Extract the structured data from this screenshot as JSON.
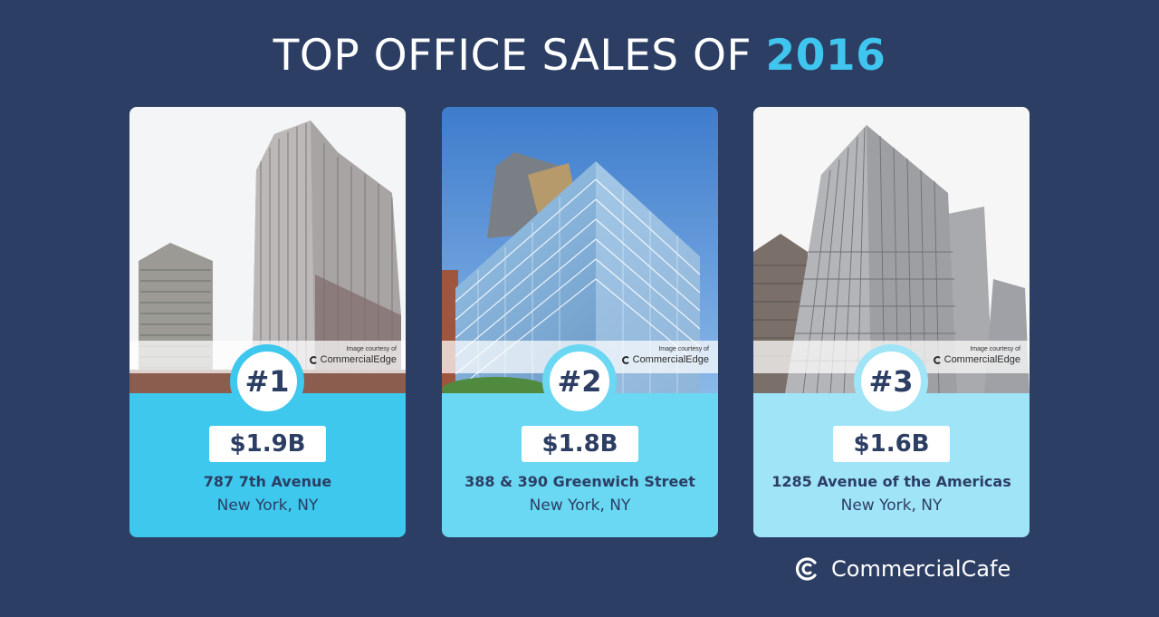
{
  "header": {
    "title_prefix": "TOP OFFICE SALES OF",
    "title_year": "2016"
  },
  "cards": [
    {
      "rank": "#1",
      "price": "$1.9B",
      "address": "787 7th Avenue",
      "city": "New York, NY",
      "credit_label": "Image courtesy of",
      "credit_brand": "CommercialEdge"
    },
    {
      "rank": "#2",
      "price": "$1.8B",
      "address": "388 & 390 Greenwich Street",
      "city": "New York, NY",
      "credit_label": "Image courtesy of",
      "credit_brand": "CommercialEdge"
    },
    {
      "rank": "#3",
      "price": "$1.6B",
      "address": "1285 Avenue of the Americas",
      "city": "New York, NY",
      "credit_label": "Image courtesy of",
      "credit_brand": "CommercialEdge"
    }
  ],
  "footer": {
    "brand": "CommercialCafe"
  },
  "colors": {
    "background": "#2c3e63",
    "accent": "#3fc5ee",
    "card1": "#3ec8ee",
    "card2": "#6ad7f3",
    "card3": "#a0e4f8"
  }
}
